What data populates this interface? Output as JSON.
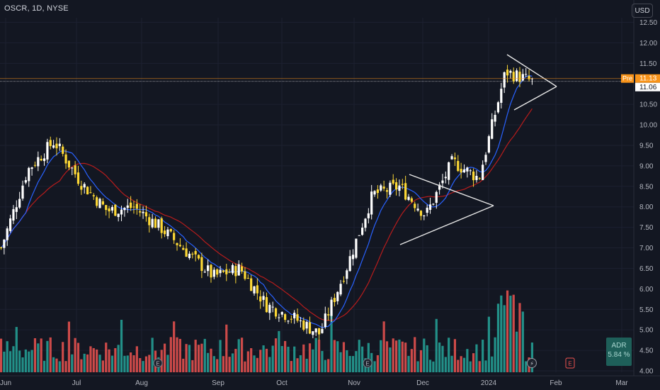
{
  "header": {
    "ticker": "OSCR, 1D, NYSE",
    "currency_label": "USD"
  },
  "price_axis": {
    "labels": [
      "12.50",
      "12.00",
      "11.50",
      "10.50",
      "10.00",
      "9.50",
      "9.00",
      "8.50",
      "8.00",
      "7.50",
      "7.00",
      "6.50",
      "6.00",
      "5.50",
      "5.00",
      "4.50",
      "4.00"
    ],
    "current_price": "11.06",
    "premarket_tag": "Pre",
    "premarket_price": "11.13"
  },
  "time_axis": {
    "labels": [
      "Jun",
      "Jul",
      "Aug",
      "Sep",
      "Oct",
      "Nov",
      "Dec",
      "2024",
      "Feb",
      "Mar"
    ]
  },
  "adr": {
    "label": "ADR",
    "value": "5.84 %"
  },
  "events": {
    "earnings_marker": "E",
    "dividend_marker": "⚡"
  },
  "colors": {
    "background": "#131722",
    "candle_bear": "#fdd835",
    "candle_bull": "#ffffff",
    "ma_fast": "#2962ff",
    "ma_slow": "#b71c1c",
    "volume_up": "#26a69a",
    "volume_down": "#ef5350",
    "price_line": "#ffffff",
    "premarket": "#f7931a",
    "adr_box": "#1e5f59"
  },
  "chart_data": {
    "type": "candlestick",
    "symbol": "OSCR",
    "interval": "1D",
    "exchange": "NYSE",
    "ylim": [
      4.0,
      12.75
    ],
    "current_price": 11.06,
    "premarket_price": 11.13,
    "key_closes": [
      {
        "period": "late May 2023",
        "close": 7.0
      },
      {
        "period": "early Jun 2023",
        "close": 8.9
      },
      {
        "period": "mid Jun 2023",
        "close": 9.6
      },
      {
        "period": "late Jun 2023",
        "close": 8.6
      },
      {
        "period": "early Jul 2023",
        "close": 7.9
      },
      {
        "period": "late Jul 2023",
        "close": 8.0
      },
      {
        "period": "early Aug 2023",
        "close": 7.5
      },
      {
        "period": "mid Aug 2023",
        "close": 6.9
      },
      {
        "period": "late Aug 2023",
        "close": 6.3
      },
      {
        "period": "early Sep 2023",
        "close": 6.5
      },
      {
        "period": "late Sep 2023",
        "close": 5.6
      },
      {
        "period": "mid Oct 2023",
        "close": 5.3
      },
      {
        "period": "late Oct 2023",
        "close": 4.9
      },
      {
        "period": "early Nov 2023",
        "close": 6.5
      },
      {
        "period": "mid Nov 2023",
        "close": 8.3
      },
      {
        "period": "late Nov 2023",
        "close": 8.5
      },
      {
        "period": "mid Dec 2023",
        "close": 7.8
      },
      {
        "period": "late Dec 2023",
        "close": 9.1
      },
      {
        "period": "early Jan 2024",
        "close": 8.7
      },
      {
        "period": "mid Jan 2024",
        "close": 11.3
      },
      {
        "period": "late Jan 2024",
        "close": 11.06
      }
    ],
    "volume": "bars along bottom pane, spikes in early Jan 2024",
    "overlays": [
      "fast moving average (blue)",
      "slow moving average (red)",
      "symmetrical triangle drawings"
    ],
    "grid": true,
    "legend": "none"
  }
}
